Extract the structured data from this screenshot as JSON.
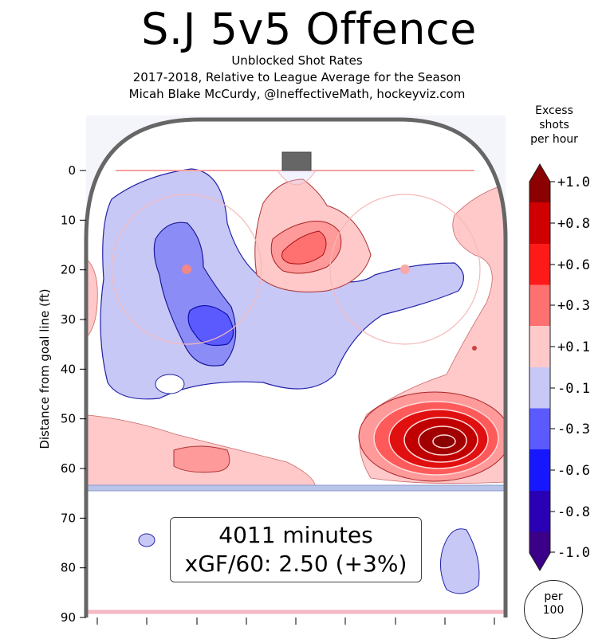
{
  "header": {
    "title": "S.J 5v5 Offence",
    "subtitle1": "Unblocked Shot Rates",
    "subtitle2": "2017-2018, Relative to League Average for the Season",
    "subtitle3": "Micah Blake McCurdy, @IneffectiveMath, hockeyviz.com"
  },
  "stats": {
    "minutes": "4011 minutes",
    "xgf": "xGF/60: 2.50 (+3%)"
  },
  "colorbar": {
    "title_lines": [
      "Excess",
      "shots",
      "per hour"
    ],
    "levels": [
      {
        "label": "+1.0",
        "color": "#8b0000"
      },
      {
        "label": "+0.8",
        "color": "#d10000"
      },
      {
        "label": "+0.6",
        "color": "#ff1a1a"
      },
      {
        "label": "+0.3",
        "color": "#ff7070"
      },
      {
        "label": "+0.1",
        "color": "#ffc9c9"
      },
      {
        "label": "-0.1",
        "color": "#c8c8f6"
      },
      {
        "label": "-0.3",
        "color": "#5a5aff"
      },
      {
        "label": "-0.6",
        "color": "#1616ff"
      },
      {
        "label": "-0.8",
        "color": "#2a00b4"
      },
      {
        "label": "-1.0",
        "color": "#3a0088"
      }
    ]
  },
  "per_badge": {
    "line1": "per",
    "line2": "100"
  },
  "chart_data": {
    "type": "heatmap",
    "title": "S.J 5v5 Offence",
    "ylabel": "Distance from goal line (ft)",
    "ylim": [
      0,
      90
    ],
    "yticks": [
      0,
      10,
      20,
      30,
      40,
      50,
      60,
      70,
      80,
      90
    ],
    "regions": [
      {
        "sign": "negative",
        "area": "left slot / left faceoff circle",
        "peak": -0.3
      },
      {
        "sign": "positive",
        "area": "high slot near crease",
        "peak": 0.3
      },
      {
        "sign": "positive",
        "area": "right point, ~55 ft",
        "peak": 1.0
      },
      {
        "sign": "negative",
        "area": "left-center 30-45 ft",
        "peak": -0.1
      },
      {
        "sign": "positive",
        "area": "right boards",
        "peak": 0.1
      }
    ]
  }
}
